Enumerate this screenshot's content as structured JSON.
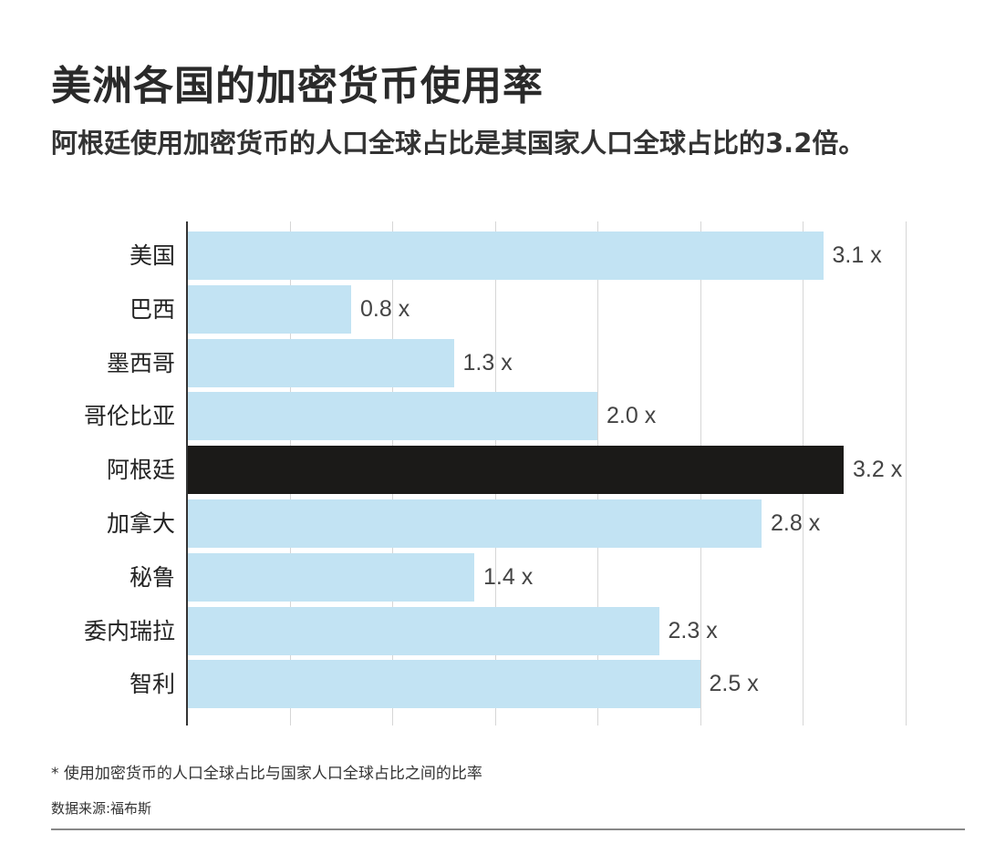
{
  "header": {
    "title": "美洲各国的加密货币使用率",
    "subtitle": "阿根廷使用加密货币的人口全球占比是其国家人口全球占比的3.2倍。"
  },
  "footer": {
    "note": "* 使用加密货币的人口全球占比与国家人口全球占比之间的比率",
    "source": "数据来源:福布斯"
  },
  "colors": {
    "bar": "#c2e3f3",
    "highlight": "#1b1a18",
    "grid": "#d6d6d6"
  },
  "chart_data": {
    "type": "bar",
    "orientation": "horizontal",
    "title": "美洲各国的加密货币使用率",
    "subtitle": "阿根廷使用加密货币的人口全球占比是其国家人口全球占比的3.2倍。",
    "categories": [
      "美国",
      "巴西",
      "墨西哥",
      "哥伦比亚",
      "阿根廷",
      "加拿大",
      "秘鲁",
      "委内瑞拉",
      "智利"
    ],
    "values": [
      3.1,
      0.8,
      1.3,
      2.0,
      3.2,
      2.8,
      1.4,
      2.3,
      2.5
    ],
    "labels": [
      "3.1 x",
      "0.8 x",
      "1.3 x",
      "2.0 x",
      "3.2 x",
      "2.8 x",
      "1.4 x",
      "2.3 x",
      "2.5 x"
    ],
    "highlight": "阿根廷",
    "xlabel": "",
    "ylabel": "",
    "xlim": [
      0,
      3.5
    ],
    "grid": true,
    "grid_step": 0.5,
    "tick_labels_shown": false,
    "annotation": "* 使用加密货币的人口全球占比与国家人口全球占比之间的比率",
    "source": "数据来源:福布斯"
  }
}
